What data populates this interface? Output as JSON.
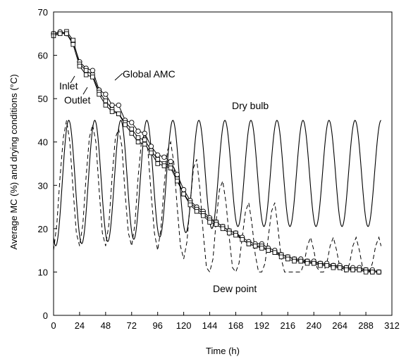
{
  "chart_data": {
    "type": "line",
    "xlabel": "Time (h)",
    "ylabel": "Average MC (%) and drying conditions (°C)",
    "xlim": [
      0,
      312
    ],
    "ylim": [
      0,
      70
    ],
    "xticks": [
      0,
      24,
      48,
      72,
      96,
      120,
      144,
      168,
      192,
      216,
      240,
      264,
      288,
      312
    ],
    "yticks": [
      0,
      10,
      20,
      30,
      40,
      50,
      60,
      70
    ],
    "grid": false,
    "annotations": {
      "inlet": "Inlet",
      "outlet": "Outlet",
      "global_amc": "Global AMC",
      "dry_bulb": "Dry bulb",
      "dew_point": "Dew point"
    },
    "dry_bulb": {
      "style": "solid",
      "period_h": 24,
      "first_peak_h": 14,
      "end_h": 302,
      "x_min": [
        0,
        24,
        48,
        72,
        96,
        120,
        144,
        168,
        192,
        216,
        240,
        264,
        288
      ],
      "y_min": [
        16,
        16.5,
        17,
        17.5,
        18,
        19,
        20,
        20.5,
        20.5,
        20.5,
        20.5,
        20.5,
        20.5
      ],
      "peak": 45
    },
    "dew_point": {
      "style": "dashed",
      "x": [
        0,
        3,
        6,
        9,
        12,
        15,
        18,
        21,
        24,
        27,
        30,
        33,
        36,
        39,
        42,
        45,
        48,
        51,
        54,
        57,
        60,
        63,
        66,
        69,
        72,
        75,
        78,
        81,
        84,
        87,
        90,
        93,
        96,
        99,
        102,
        105,
        108,
        111,
        114,
        117,
        120,
        123,
        126,
        129,
        132,
        135,
        138,
        141,
        144,
        147,
        150,
        153,
        156,
        159,
        162,
        165,
        168,
        171,
        174,
        177,
        180,
        183,
        186,
        189,
        192,
        195,
        198,
        201,
        204,
        207,
        210,
        213,
        216,
        219,
        222,
        225,
        228,
        231,
        234,
        237,
        240,
        243,
        246,
        249,
        252,
        255,
        258,
        261,
        264,
        267,
        270,
        273,
        276,
        279,
        282,
        285,
        288,
        291,
        294,
        297,
        300,
        302
      ],
      "y": [
        15,
        21,
        32,
        41,
        45,
        40,
        29,
        19,
        16,
        21,
        32,
        41,
        44,
        40,
        29,
        19,
        16,
        21,
        32,
        41,
        43,
        39,
        28,
        19,
        16,
        21,
        32,
        40,
        42,
        38,
        28,
        19,
        15,
        20,
        30,
        38,
        40,
        35,
        25,
        16,
        13,
        17,
        26,
        34,
        36,
        29,
        19,
        11,
        10,
        13,
        22,
        29,
        31,
        26,
        18,
        11,
        10,
        12,
        18,
        24,
        26,
        21,
        14,
        10,
        10,
        12,
        18,
        24,
        26,
        20,
        13,
        10,
        10,
        10,
        10,
        10,
        10,
        12,
        16,
        18,
        15,
        11,
        10,
        10,
        12,
        16,
        18,
        15,
        11,
        10,
        10,
        12,
        16,
        18,
        15,
        11,
        10,
        10,
        12,
        16,
        18,
        16
      ]
    },
    "series": [
      {
        "name": "Global AMC",
        "marker": "circle",
        "x": [
          0,
          6,
          12,
          18,
          24,
          30,
          36,
          42,
          48,
          54,
          60,
          66,
          72,
          78,
          84,
          90,
          96,
          102,
          108,
          114,
          120,
          126,
          132,
          138,
          144,
          150,
          156,
          162,
          168,
          174,
          180,
          186,
          192,
          198,
          204,
          210,
          216,
          222,
          228,
          234,
          240,
          246,
          252,
          258,
          264,
          270,
          276,
          282,
          288,
          294,
          300
        ],
        "y": [
          65,
          65.4,
          65,
          63,
          58.5,
          57,
          56.5,
          52,
          51,
          48.5,
          48.5,
          45,
          44.5,
          42.5,
          42,
          39,
          37,
          36.5,
          35.5,
          32.5,
          29,
          26.5,
          25,
          24,
          22.5,
          21.5,
          20.5,
          19.5,
          19,
          18,
          17,
          16.5,
          16.5,
          15.5,
          15,
          14,
          13.5,
          13,
          13,
          12.5,
          12.5,
          12,
          12,
          11.5,
          11.5,
          11,
          11,
          11,
          10.5,
          10.5,
          10
        ]
      },
      {
        "name": "Inlet",
        "marker": "square",
        "x": [
          0,
          6,
          12,
          18,
          24,
          30,
          36,
          42,
          48,
          54,
          60,
          66,
          72,
          78,
          84,
          90,
          96,
          102,
          108,
          114,
          120,
          126,
          132,
          138,
          144,
          150,
          156,
          162,
          168,
          174,
          180,
          186,
          192,
          198,
          204,
          210,
          216,
          222,
          228,
          234,
          240,
          246,
          252,
          258,
          264,
          270,
          276,
          282,
          288,
          294,
          300
        ],
        "y": [
          65,
          65,
          65.5,
          63.5,
          58,
          56.5,
          55.5,
          51.5,
          49.5,
          47.5,
          46.5,
          44.5,
          43,
          41,
          40.5,
          38,
          36,
          35,
          34.5,
          31.5,
          28,
          26,
          24.5,
          23.5,
          22,
          21.5,
          20.5,
          19.5,
          19,
          17.5,
          16.5,
          16,
          16,
          15,
          14.5,
          14,
          13.5,
          13,
          12.5,
          12.5,
          12,
          12,
          11.5,
          11.5,
          11,
          11,
          10.5,
          10.5,
          10.5,
          10,
          10
        ]
      },
      {
        "name": "Outlet",
        "marker": "square",
        "x": [
          0,
          6,
          12,
          18,
          24,
          30,
          36,
          42,
          48,
          54,
          60,
          66,
          72,
          78,
          84,
          90,
          96,
          102,
          108,
          114,
          120,
          126,
          132,
          138,
          144,
          150,
          156,
          162,
          168,
          174,
          180,
          186,
          192,
          198,
          204,
          210,
          216,
          222,
          228,
          234,
          240,
          246,
          252,
          258,
          264,
          270,
          276,
          282,
          288,
          294,
          300
        ],
        "y": [
          64.5,
          65,
          65,
          62.5,
          57.5,
          55.5,
          55,
          51,
          48.5,
          47,
          46.5,
          44,
          42,
          40,
          39.5,
          37.5,
          35,
          34.5,
          34,
          31,
          28,
          25.5,
          24,
          23,
          21.5,
          21,
          20,
          19,
          18.5,
          17.5,
          16.5,
          16,
          15.5,
          15,
          14.5,
          13.5,
          13,
          12.5,
          12.5,
          12,
          12,
          11.5,
          11.5,
          11,
          11,
          10.5,
          10.5,
          10.5,
          10,
          10,
          10
        ]
      }
    ]
  }
}
